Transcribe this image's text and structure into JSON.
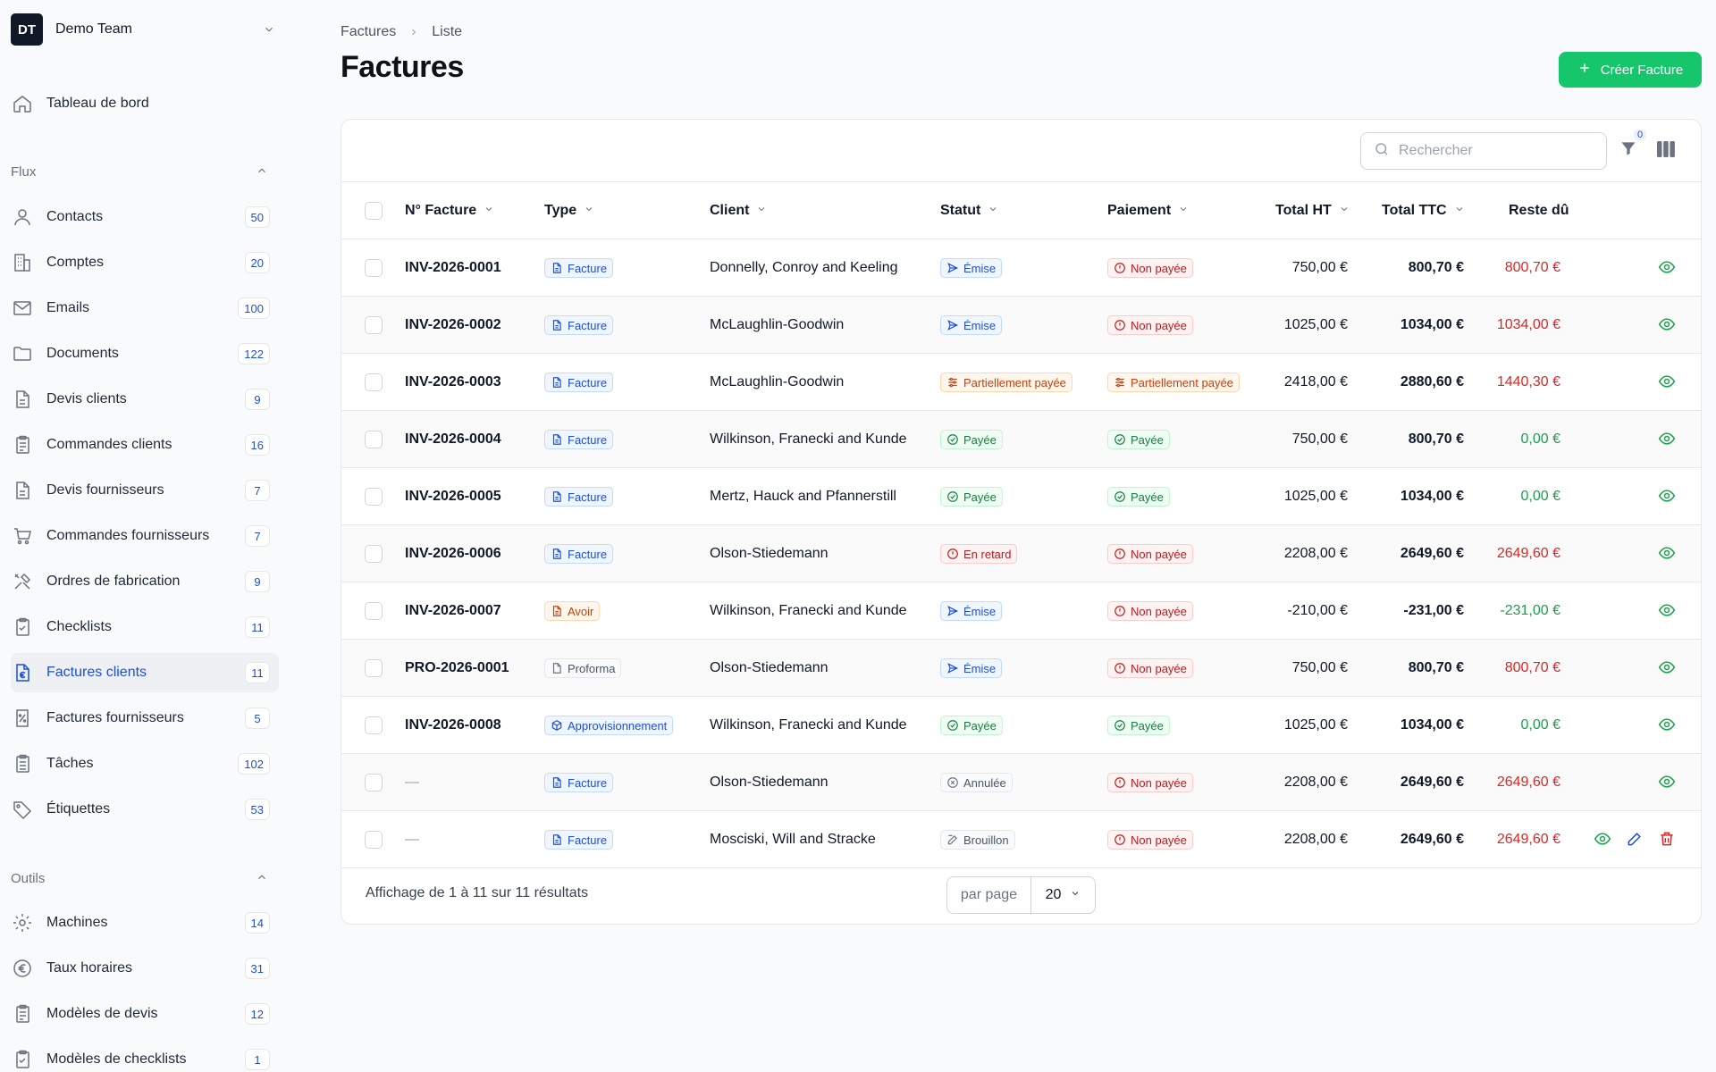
{
  "team": {
    "initials": "DT",
    "name": "Demo Team"
  },
  "nav": {
    "dashboard": "Tableau de bord",
    "sections": [
      {
        "label": "Flux"
      },
      {
        "label": "Outils"
      }
    ],
    "flux_items": [
      {
        "label": "Contacts",
        "count": "50",
        "icon": "user-icon"
      },
      {
        "label": "Comptes",
        "count": "20",
        "icon": "building-icon"
      },
      {
        "label": "Emails",
        "count": "100",
        "icon": "mail-icon"
      },
      {
        "label": "Documents",
        "count": "122",
        "icon": "folder-icon"
      },
      {
        "label": "Devis clients",
        "count": "9",
        "icon": "document-icon"
      },
      {
        "label": "Commandes clients",
        "count": "16",
        "icon": "clipboard-icon"
      },
      {
        "label": "Devis fournisseurs",
        "count": "7",
        "icon": "document-icon"
      },
      {
        "label": "Commandes fournisseurs",
        "count": "7",
        "icon": "cart-icon"
      },
      {
        "label": "Ordres de fabrication",
        "count": "9",
        "icon": "tools-icon"
      },
      {
        "label": "Checklists",
        "count": "11",
        "icon": "clipboard-check-icon"
      },
      {
        "label": "Factures clients",
        "count": "11",
        "icon": "invoice-euro-icon",
        "active": true
      },
      {
        "label": "Factures fournisseurs",
        "count": "5",
        "icon": "receipt-percent-icon"
      },
      {
        "label": "Tâches",
        "count": "102",
        "icon": "clipboard-list-icon"
      },
      {
        "label": "Étiquettes",
        "count": "53",
        "icon": "tag-icon"
      }
    ],
    "outils_items": [
      {
        "label": "Machines",
        "count": "14",
        "icon": "gear-icon"
      },
      {
        "label": "Taux horaires",
        "count": "31",
        "icon": "euro-circle-icon"
      },
      {
        "label": "Modèles de devis",
        "count": "12",
        "icon": "clipboard-icon"
      },
      {
        "label": "Modèles de checklists",
        "count": "1",
        "icon": "clipboard-check-icon"
      }
    ]
  },
  "breadcrumb": [
    "Factures",
    "Liste"
  ],
  "page_title": "Factures",
  "create_button": "Créer Facture",
  "search": {
    "placeholder": "Rechercher"
  },
  "filter_count": "0",
  "columns": [
    "N° Facture",
    "Type",
    "Client",
    "Statut",
    "Paiement",
    "Total HT",
    "Total TTC",
    "Reste dû"
  ],
  "rows": [
    {
      "number": "INV-2026-0001",
      "type": "Facture",
      "client": "Donnelly, Conroy and Keeling",
      "status": "Émise",
      "payment": "Non payée",
      "ht": "750,00 €",
      "ttc": "800,70 €",
      "due": "800,70 €"
    },
    {
      "number": "INV-2026-0002",
      "type": "Facture",
      "client": "McLaughlin-Goodwin",
      "status": "Émise",
      "payment": "Non payée",
      "ht": "1025,00 €",
      "ttc": "1034,00 €",
      "due": "1034,00 €"
    },
    {
      "number": "INV-2026-0003",
      "type": "Facture",
      "client": "McLaughlin-Goodwin",
      "status": "Partiellement payée",
      "payment": "Partiellement payée",
      "ht": "2418,00 €",
      "ttc": "2880,60 €",
      "due": "1440,30 €"
    },
    {
      "number": "INV-2026-0004",
      "type": "Facture",
      "client": "Wilkinson, Franecki and Kunde",
      "status": "Payée",
      "payment": "Payée",
      "ht": "750,00 €",
      "ttc": "800,70 €",
      "due": "0,00 €"
    },
    {
      "number": "INV-2026-0005",
      "type": "Facture",
      "client": "Mertz, Hauck and Pfannerstill",
      "status": "Payée",
      "payment": "Payée",
      "ht": "1025,00 €",
      "ttc": "1034,00 €",
      "due": "0,00 €"
    },
    {
      "number": "INV-2026-0006",
      "type": "Facture",
      "client": "Olson-Stiedemann",
      "status": "En retard",
      "payment": "Non payée",
      "ht": "2208,00 €",
      "ttc": "2649,60 €",
      "due": "2649,60 €"
    },
    {
      "number": "INV-2026-0007",
      "type": "Avoir",
      "client": "Wilkinson, Franecki and Kunde",
      "status": "Émise",
      "payment": "Non payée",
      "ht": "-210,00 €",
      "ttc": "-231,00 €",
      "due": "-231,00 €"
    },
    {
      "number": "PRO-2026-0001",
      "type": "Proforma",
      "client": "Olson-Stiedemann",
      "status": "Émise",
      "payment": "Non payée",
      "ht": "750,00 €",
      "ttc": "800,70 €",
      "due": "800,70 €"
    },
    {
      "number": "INV-2026-0008",
      "type": "Approvisionnement",
      "client": "Wilkinson, Franecki and Kunde",
      "status": "Payée",
      "payment": "Payée",
      "ht": "1025,00 €",
      "ttc": "1034,00 €",
      "due": "0,00 €"
    },
    {
      "number": "—",
      "type": "Facture",
      "client": "Olson-Stiedemann",
      "status": "Annulée",
      "payment": "Non payée",
      "ht": "2208,00 €",
      "ttc": "2649,60 €",
      "due": "2649,60 €"
    },
    {
      "number": "—",
      "type": "Facture",
      "client": "Mosciski, Will and Stracke",
      "status": "Brouillon",
      "payment": "Non payée",
      "ht": "2208,00 €",
      "ttc": "2649,60 €",
      "due": "2649,60 €"
    }
  ],
  "footer": {
    "results": "Affichage de 1 à 11 sur 11 résultats",
    "per_page_label": "par page",
    "per_page_value": "20"
  },
  "colors": {
    "accent": "#16c66b",
    "link": "#1d4ed8",
    "danger": "#dc2626",
    "success": "#16a34a"
  }
}
